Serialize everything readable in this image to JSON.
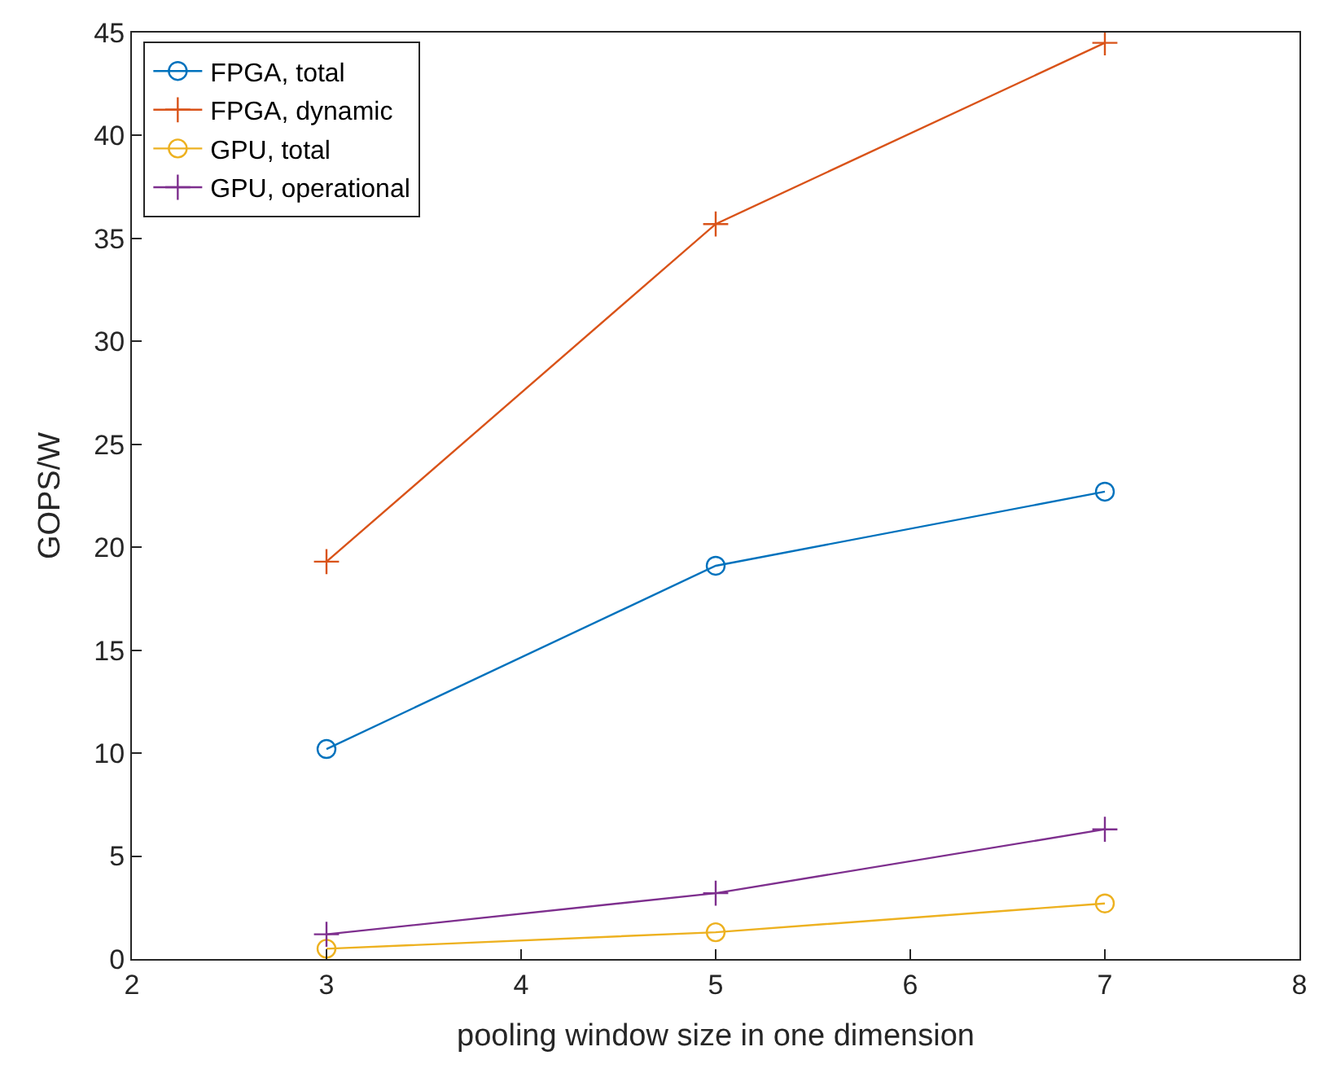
{
  "chart_data": {
    "type": "line",
    "xlabel": "pooling window size in one dimension",
    "ylabel": "GOPS/W",
    "xlim": [
      2,
      8
    ],
    "xticks": [
      2,
      3,
      4,
      5,
      6,
      7,
      8
    ],
    "ylim": [
      0,
      45
    ],
    "yticks": [
      0,
      5,
      10,
      15,
      20,
      25,
      30,
      35,
      40,
      45
    ],
    "legend": "top left",
    "series": [
      {
        "name": "FPGA, total",
        "color": "#0072bd",
        "marker": "circle",
        "x": [
          3,
          5,
          7
        ],
        "values": [
          10.2,
          19.1,
          22.7
        ]
      },
      {
        "name": "FPGA, dynamic",
        "color": "#d95319",
        "marker": "cross",
        "x": [
          3,
          5,
          7
        ],
        "values": [
          19.3,
          35.7,
          44.5
        ]
      },
      {
        "name": "GPU, total",
        "color": "#edb120",
        "marker": "circle",
        "x": [
          3,
          5,
          7
        ],
        "values": [
          0.5,
          1.3,
          2.7
        ]
      },
      {
        "name": "GPU, operational",
        "color": "#7e2f8e",
        "marker": "cross",
        "x": [
          3,
          5,
          7
        ],
        "values": [
          1.2,
          3.2,
          6.3
        ]
      }
    ]
  }
}
